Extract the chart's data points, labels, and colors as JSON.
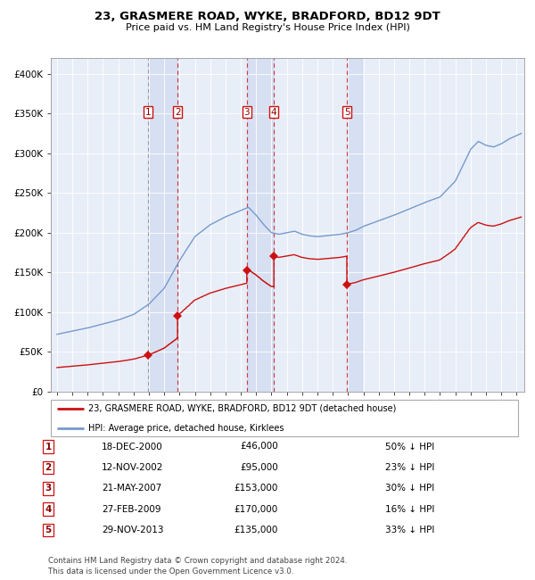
{
  "title": "23, GRASMERE ROAD, WYKE, BRADFORD, BD12 9DT",
  "subtitle": "Price paid vs. HM Land Registry's House Price Index (HPI)",
  "legend_line1": "23, GRASMERE ROAD, WYKE, BRADFORD, BD12 9DT (detached house)",
  "legend_line2": "HPI: Average price, detached house, Kirklees",
  "footer1": "Contains HM Land Registry data © Crown copyright and database right 2024.",
  "footer2": "This data is licensed under the Open Government Licence v3.0.",
  "hpi_color": "#7799cc",
  "price_color": "#cc1111",
  "plot_bg": "#e8eef8",
  "grid_color": "#ffffff",
  "ylim": [
    0,
    420000
  ],
  "yticks": [
    0,
    50000,
    100000,
    150000,
    200000,
    250000,
    300000,
    350000,
    400000
  ],
  "xlim_start": 1994.6,
  "xlim_end": 2025.5,
  "sales": [
    {
      "num": 1,
      "year": 2000.96,
      "price": 46000,
      "date": "18-DEC-2000",
      "pct": "50% ↓ HPI"
    },
    {
      "num": 2,
      "year": 2002.87,
      "price": 95000,
      "date": "12-NOV-2002",
      "pct": "23% ↓ HPI"
    },
    {
      "num": 3,
      "year": 2007.39,
      "price": 153000,
      "date": "21-MAY-2007",
      "pct": "30% ↓ HPI"
    },
    {
      "num": 4,
      "year": 2009.16,
      "price": 170000,
      "date": "27-FEB-2009",
      "pct": "16% ↓ HPI"
    },
    {
      "num": 5,
      "year": 2013.92,
      "price": 135000,
      "date": "29-NOV-2013",
      "pct": "33% ↓ HPI"
    }
  ],
  "shade_ranges": [
    [
      2000.96,
      2002.87
    ],
    [
      2007.39,
      2009.16
    ],
    [
      2013.92,
      2014.92
    ]
  ],
  "vlines_dashed": [
    2002.87,
    2007.39,
    2009.16,
    2013.92
  ],
  "vline_dotted": 2000.96
}
